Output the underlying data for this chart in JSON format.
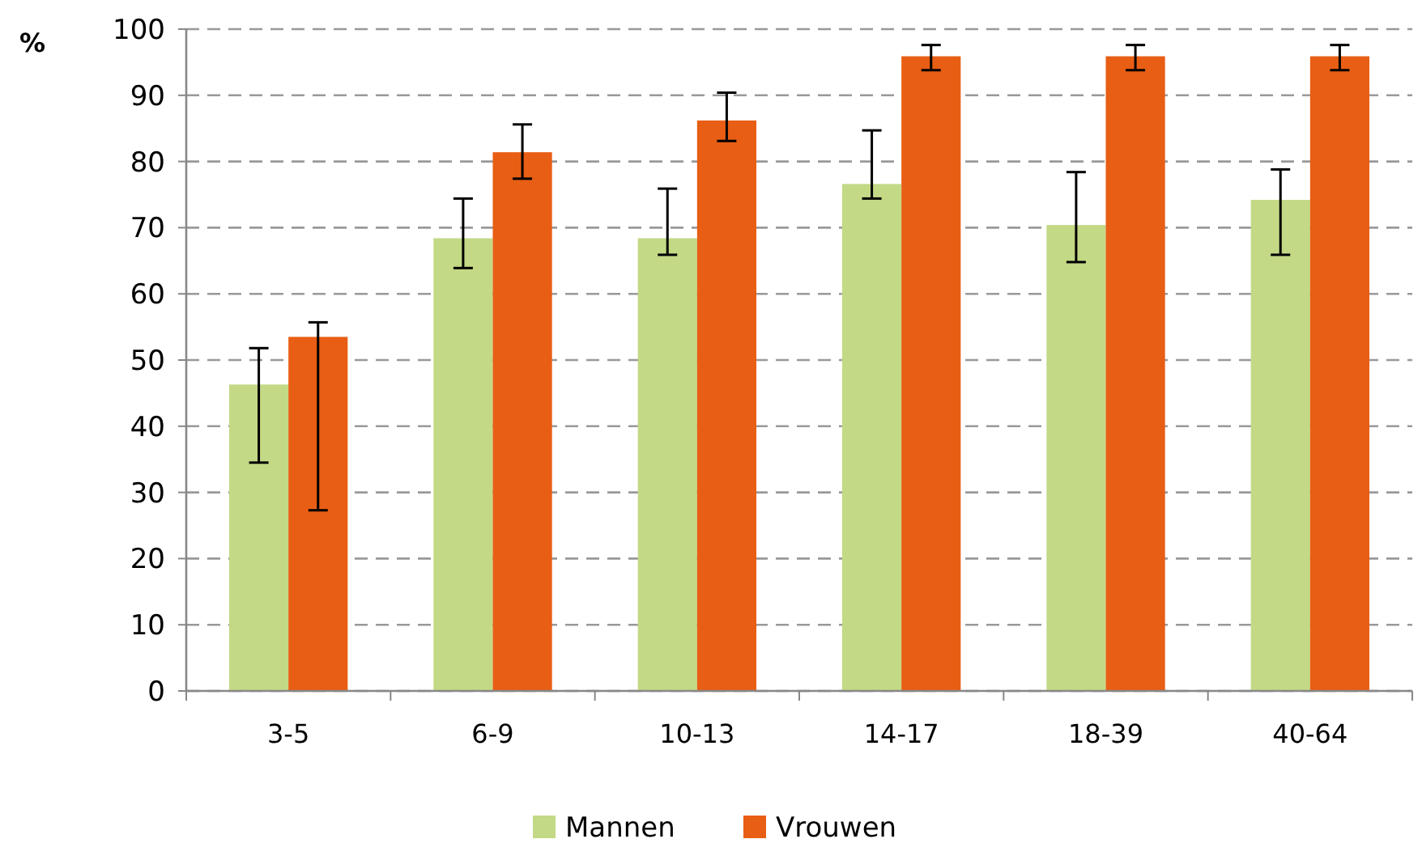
{
  "chart_data": {
    "type": "bar",
    "ylabel": "%",
    "categories": [
      "3-5",
      "6-9",
      "10-13",
      "14-17",
      "18-39",
      "40-64"
    ],
    "series": [
      {
        "name": "Mannen",
        "color": "#c3d985",
        "values": [
          46.3,
          68.4,
          68.4,
          76.6,
          70.4,
          74.2
        ],
        "errors": [
          [
            34.5,
            51.8
          ],
          [
            63.9,
            74.4
          ],
          [
            65.9,
            75.9
          ],
          [
            74.4,
            84.7
          ],
          [
            64.8,
            78.4
          ],
          [
            65.9,
            78.8
          ]
        ]
      },
      {
        "name": "Vrouwen",
        "color": "#e85e14",
        "values": [
          53.5,
          81.4,
          86.2,
          95.9,
          95.9,
          95.9
        ],
        "errors": [
          [
            27.3,
            55.7
          ],
          [
            77.4,
            85.6
          ],
          [
            83.1,
            90.4
          ],
          [
            93.8,
            97.6
          ],
          [
            93.8,
            97.6
          ],
          [
            93.8,
            97.6
          ]
        ]
      }
    ],
    "ylim": [
      0,
      100
    ],
    "yticks": [
      0,
      10,
      20,
      30,
      40,
      50,
      60,
      70,
      80,
      90,
      100
    ],
    "grid": "y",
    "legend": "bottom"
  }
}
